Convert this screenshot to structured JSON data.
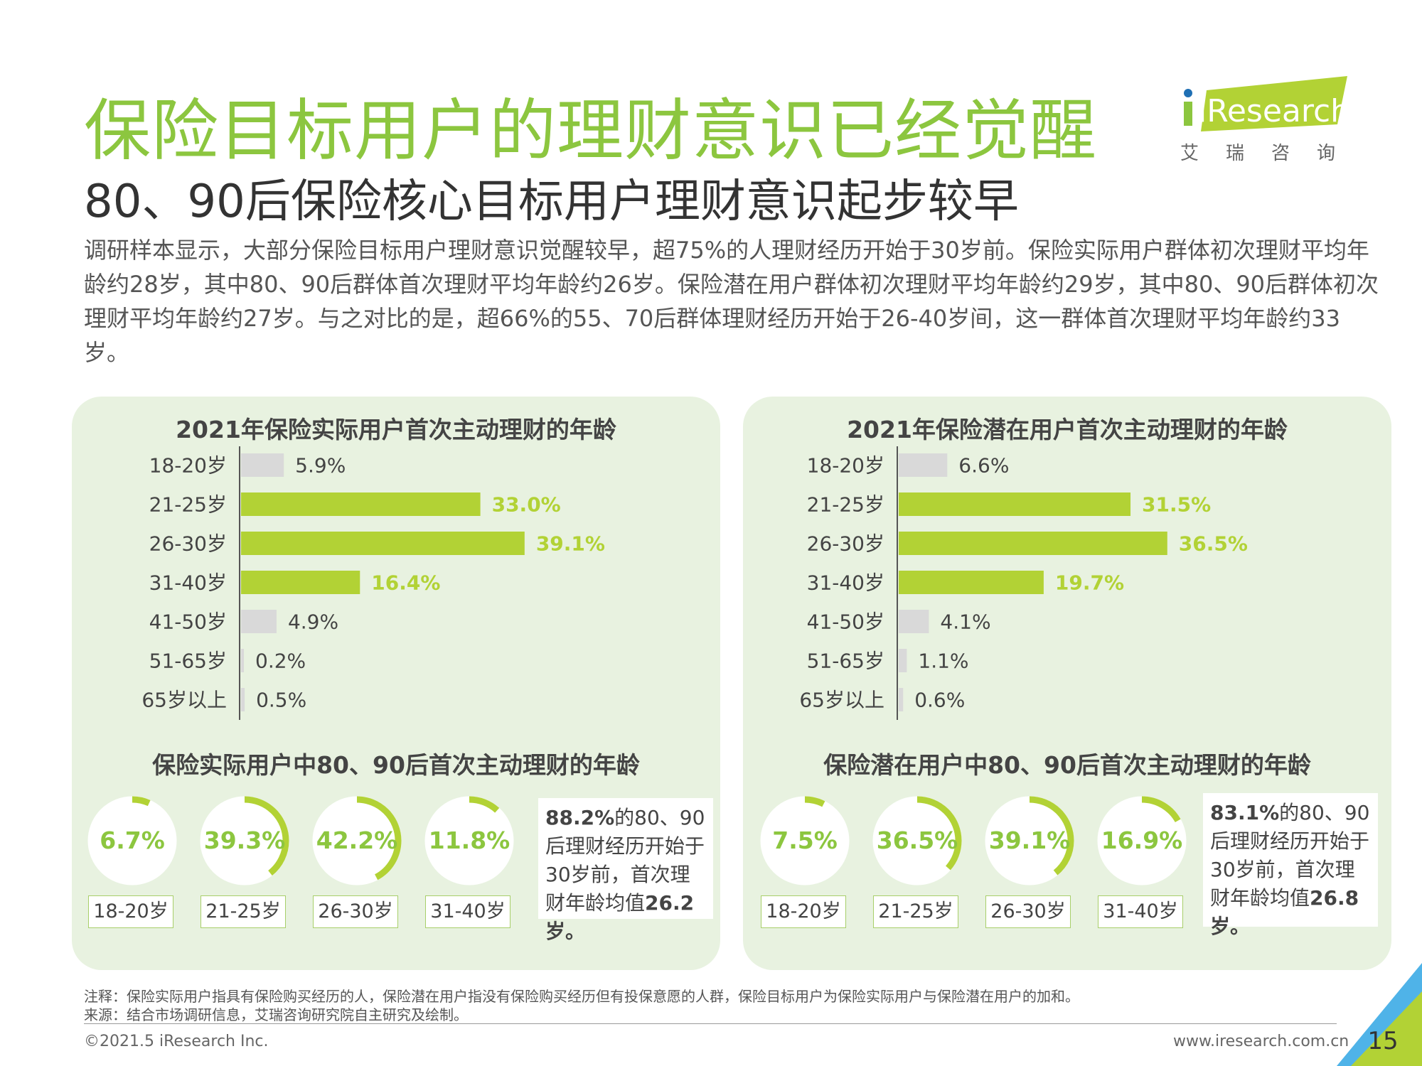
{
  "header": {
    "title": "保险目标用户的理财意识已经觉醒",
    "subtitle": "80、90后保险核心目标用户理财意识起步较早",
    "description": "调研样本显示，大部分保险目标用户理财意识觉醒较早，超75%的人理财经历开始于30岁前。保险实际用户群体初次理财平均年龄约28岁，其中80、90后群体首次理财平均年龄约26岁。保险潜在用户群体初次理财平均年龄约29岁，其中80、90后群体初次理财平均年龄约27岁。与之对比的是，超66%的55、70后群体理财经历开始于26-40岁间，这一群体首次理财平均年龄约33岁。"
  },
  "logo": {
    "text": "iResearch",
    "cn": "艾瑞咨询"
  },
  "colors": {
    "accent": "#8cc63f",
    "bar_highlight": "#b2d235",
    "bar_muted": "#d9d9d9",
    "panel": "#e8f2e0"
  },
  "chart_data": [
    {
      "type": "bar",
      "orientation": "horizontal",
      "title": "2021年保险实际用户首次主动理财的年龄",
      "categories": [
        "18-20岁",
        "21-25岁",
        "26-30岁",
        "31-40岁",
        "41-50岁",
        "51-65岁",
        "65岁以上"
      ],
      "values": [
        5.9,
        33.0,
        39.1,
        16.4,
        4.9,
        0.2,
        0.5
      ],
      "labels": [
        "5.9%",
        "33.0%",
        "39.1%",
        "16.4%",
        "4.9%",
        "0.2%",
        "0.5%"
      ],
      "highlighted": [
        false,
        true,
        true,
        true,
        false,
        false,
        false
      ]
    },
    {
      "type": "bar",
      "orientation": "horizontal",
      "title": "2021年保险潜在用户首次主动理财的年龄",
      "categories": [
        "18-20岁",
        "21-25岁",
        "26-30岁",
        "31-40岁",
        "41-50岁",
        "51-65岁",
        "65岁以上"
      ],
      "values": [
        6.6,
        31.5,
        36.5,
        19.7,
        4.1,
        1.1,
        0.6
      ],
      "labels": [
        "6.6%",
        "31.5%",
        "36.5%",
        "19.7%",
        "4.1%",
        "1.1%",
        "0.6%"
      ],
      "highlighted": [
        false,
        true,
        true,
        true,
        false,
        false,
        false
      ]
    },
    {
      "type": "pie",
      "style": "donut-progress",
      "title": "保险实际用户中80、90后首次主动理财的年龄",
      "categories": [
        "18-20岁",
        "21-25岁",
        "26-30岁",
        "31-40岁"
      ],
      "values": [
        6.7,
        39.3,
        42.2,
        11.8
      ],
      "labels": [
        "6.7%",
        "39.3%",
        "42.2%",
        "11.8%"
      ]
    },
    {
      "type": "pie",
      "style": "donut-progress",
      "title": "保险潜在用户中80、90后首次主动理财的年龄",
      "categories": [
        "18-20岁",
        "21-25岁",
        "26-30岁",
        "31-40岁"
      ],
      "values": [
        7.5,
        36.5,
        39.1,
        16.9
      ],
      "labels": [
        "7.5%",
        "36.5%",
        "39.1%",
        "16.9%"
      ]
    }
  ],
  "notes": {
    "left": {
      "pct": "88.2%",
      "mid": "的80、90后理财经历开始于30岁前，首次理财年龄均值",
      "avg": "26.2岁。"
    },
    "right": {
      "pct": "83.1%",
      "mid": "的80、90后理财经历开始于30岁前，首次理财年龄均值",
      "avg": "26.8岁。"
    }
  },
  "footer": {
    "note": "注释：保险实际用户指具有保险购买经历的人，保险潜在用户指没有保险购买经历但有投保意愿的人群，保险目标用户为保险实际用户与保险潜在用户的加和。",
    "source": "来源：结合市场调研信息，艾瑞咨询研究院自主研究及绘制。",
    "copyright": "©2021.5 iResearch Inc.",
    "website": "www.iresearch.com.cn",
    "page": "15"
  }
}
